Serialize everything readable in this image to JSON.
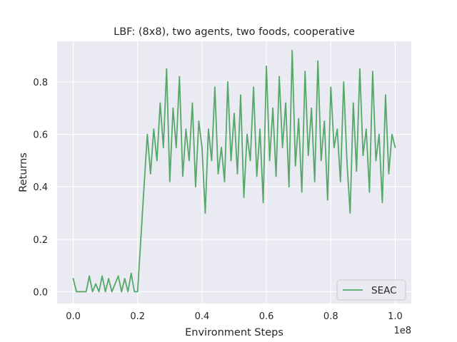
{
  "chart_data": {
    "type": "line",
    "title": "LBF: (8x8), two agents, two foods, cooperative",
    "xlabel": "Environment Steps",
    "ylabel": "Returns",
    "x_offset_label": "1e8",
    "x_scale": 100000000,
    "xlim": [
      -5000000,
      105000000
    ],
    "ylim": [
      -0.045,
      0.955
    ],
    "x_ticks": [
      0,
      20000000,
      40000000,
      60000000,
      80000000,
      100000000
    ],
    "x_tick_labels": [
      "0.0",
      "0.2",
      "0.4",
      "0.6",
      "0.8",
      "1.0"
    ],
    "y_ticks": [
      0.0,
      0.2,
      0.4,
      0.6,
      0.8
    ],
    "y_tick_labels": [
      "0.0",
      "0.2",
      "0.4",
      "0.6",
      "0.8"
    ],
    "grid": true,
    "legend_position": "bottom-right",
    "series": [
      {
        "name": "SEAC",
        "color": "#55a868",
        "x": [
          0,
          1000000,
          2000000,
          3000000,
          4000000,
          5000000,
          6000000,
          7000000,
          8000000,
          9000000,
          10000000,
          11000000,
          12000000,
          13000000,
          14000000,
          15000000,
          16000000,
          17000000,
          18000000,
          19000000,
          20000000,
          21000000,
          22000000,
          23000000,
          24000000,
          25000000,
          26000000,
          27000000,
          28000000,
          29000000,
          30000000,
          31000000,
          32000000,
          33000000,
          34000000,
          35000000,
          36000000,
          37000000,
          38000000,
          39000000,
          40000000,
          41000000,
          42000000,
          43000000,
          44000000,
          45000000,
          46000000,
          47000000,
          48000000,
          49000000,
          50000000,
          51000000,
          52000000,
          53000000,
          54000000,
          55000000,
          56000000,
          57000000,
          58000000,
          59000000,
          60000000,
          61000000,
          62000000,
          63000000,
          64000000,
          65000000,
          66000000,
          67000000,
          68000000,
          69000000,
          70000000,
          71000000,
          72000000,
          73000000,
          74000000,
          75000000,
          76000000,
          77000000,
          78000000,
          79000000,
          80000000,
          81000000,
          82000000,
          83000000,
          84000000,
          85000000,
          86000000,
          87000000,
          88000000,
          89000000,
          90000000,
          91000000,
          92000000,
          93000000,
          94000000,
          95000000,
          96000000,
          97000000,
          98000000,
          99000000,
          100000000
        ],
        "values": [
          0.05,
          0.0,
          0.0,
          0.0,
          0.0,
          0.06,
          0.0,
          0.03,
          0.0,
          0.06,
          0.0,
          0.05,
          0.0,
          0.03,
          0.06,
          0.0,
          0.05,
          0.0,
          0.07,
          0.0,
          0.0,
          0.2,
          0.4,
          0.6,
          0.45,
          0.62,
          0.5,
          0.72,
          0.55,
          0.85,
          0.42,
          0.7,
          0.55,
          0.82,
          0.44,
          0.62,
          0.5,
          0.72,
          0.4,
          0.65,
          0.55,
          0.3,
          0.62,
          0.5,
          0.78,
          0.45,
          0.55,
          0.42,
          0.8,
          0.5,
          0.68,
          0.45,
          0.75,
          0.36,
          0.6,
          0.5,
          0.78,
          0.44,
          0.62,
          0.34,
          0.86,
          0.5,
          0.7,
          0.44,
          0.82,
          0.55,
          0.72,
          0.4,
          0.92,
          0.48,
          0.66,
          0.38,
          0.84,
          0.52,
          0.7,
          0.42,
          0.88,
          0.5,
          0.65,
          0.35,
          0.78,
          0.55,
          0.62,
          0.42,
          0.8,
          0.5,
          0.3,
          0.72,
          0.46,
          0.85,
          0.52,
          0.62,
          0.38,
          0.84,
          0.5,
          0.6,
          0.34,
          0.75,
          0.45,
          0.6,
          0.55
        ]
      }
    ]
  }
}
